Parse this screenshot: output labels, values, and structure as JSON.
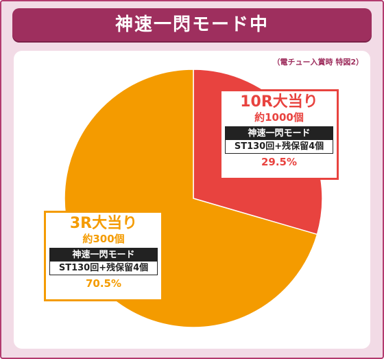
{
  "header": {
    "title": "神速一閃モード中"
  },
  "note": "（電チュー入賞時 特図2）",
  "chart_data": {
    "type": "pie",
    "slices": [
      {
        "key": "10r",
        "value": 29.5,
        "color": "#e8433f"
      },
      {
        "key": "3r",
        "value": 70.5,
        "color": "#f49b00"
      }
    ]
  },
  "labels": {
    "r10": {
      "title": "10R大当り",
      "sub": "約1000個",
      "mode": "神速一閃モード",
      "detail": "ST130回+残保留4個",
      "pct": "29.5%"
    },
    "r3": {
      "title": "3R大当り",
      "sub": "約300個",
      "mode": "神速一閃モード",
      "detail": "ST130回+残保留4個",
      "pct": "70.5%"
    }
  }
}
